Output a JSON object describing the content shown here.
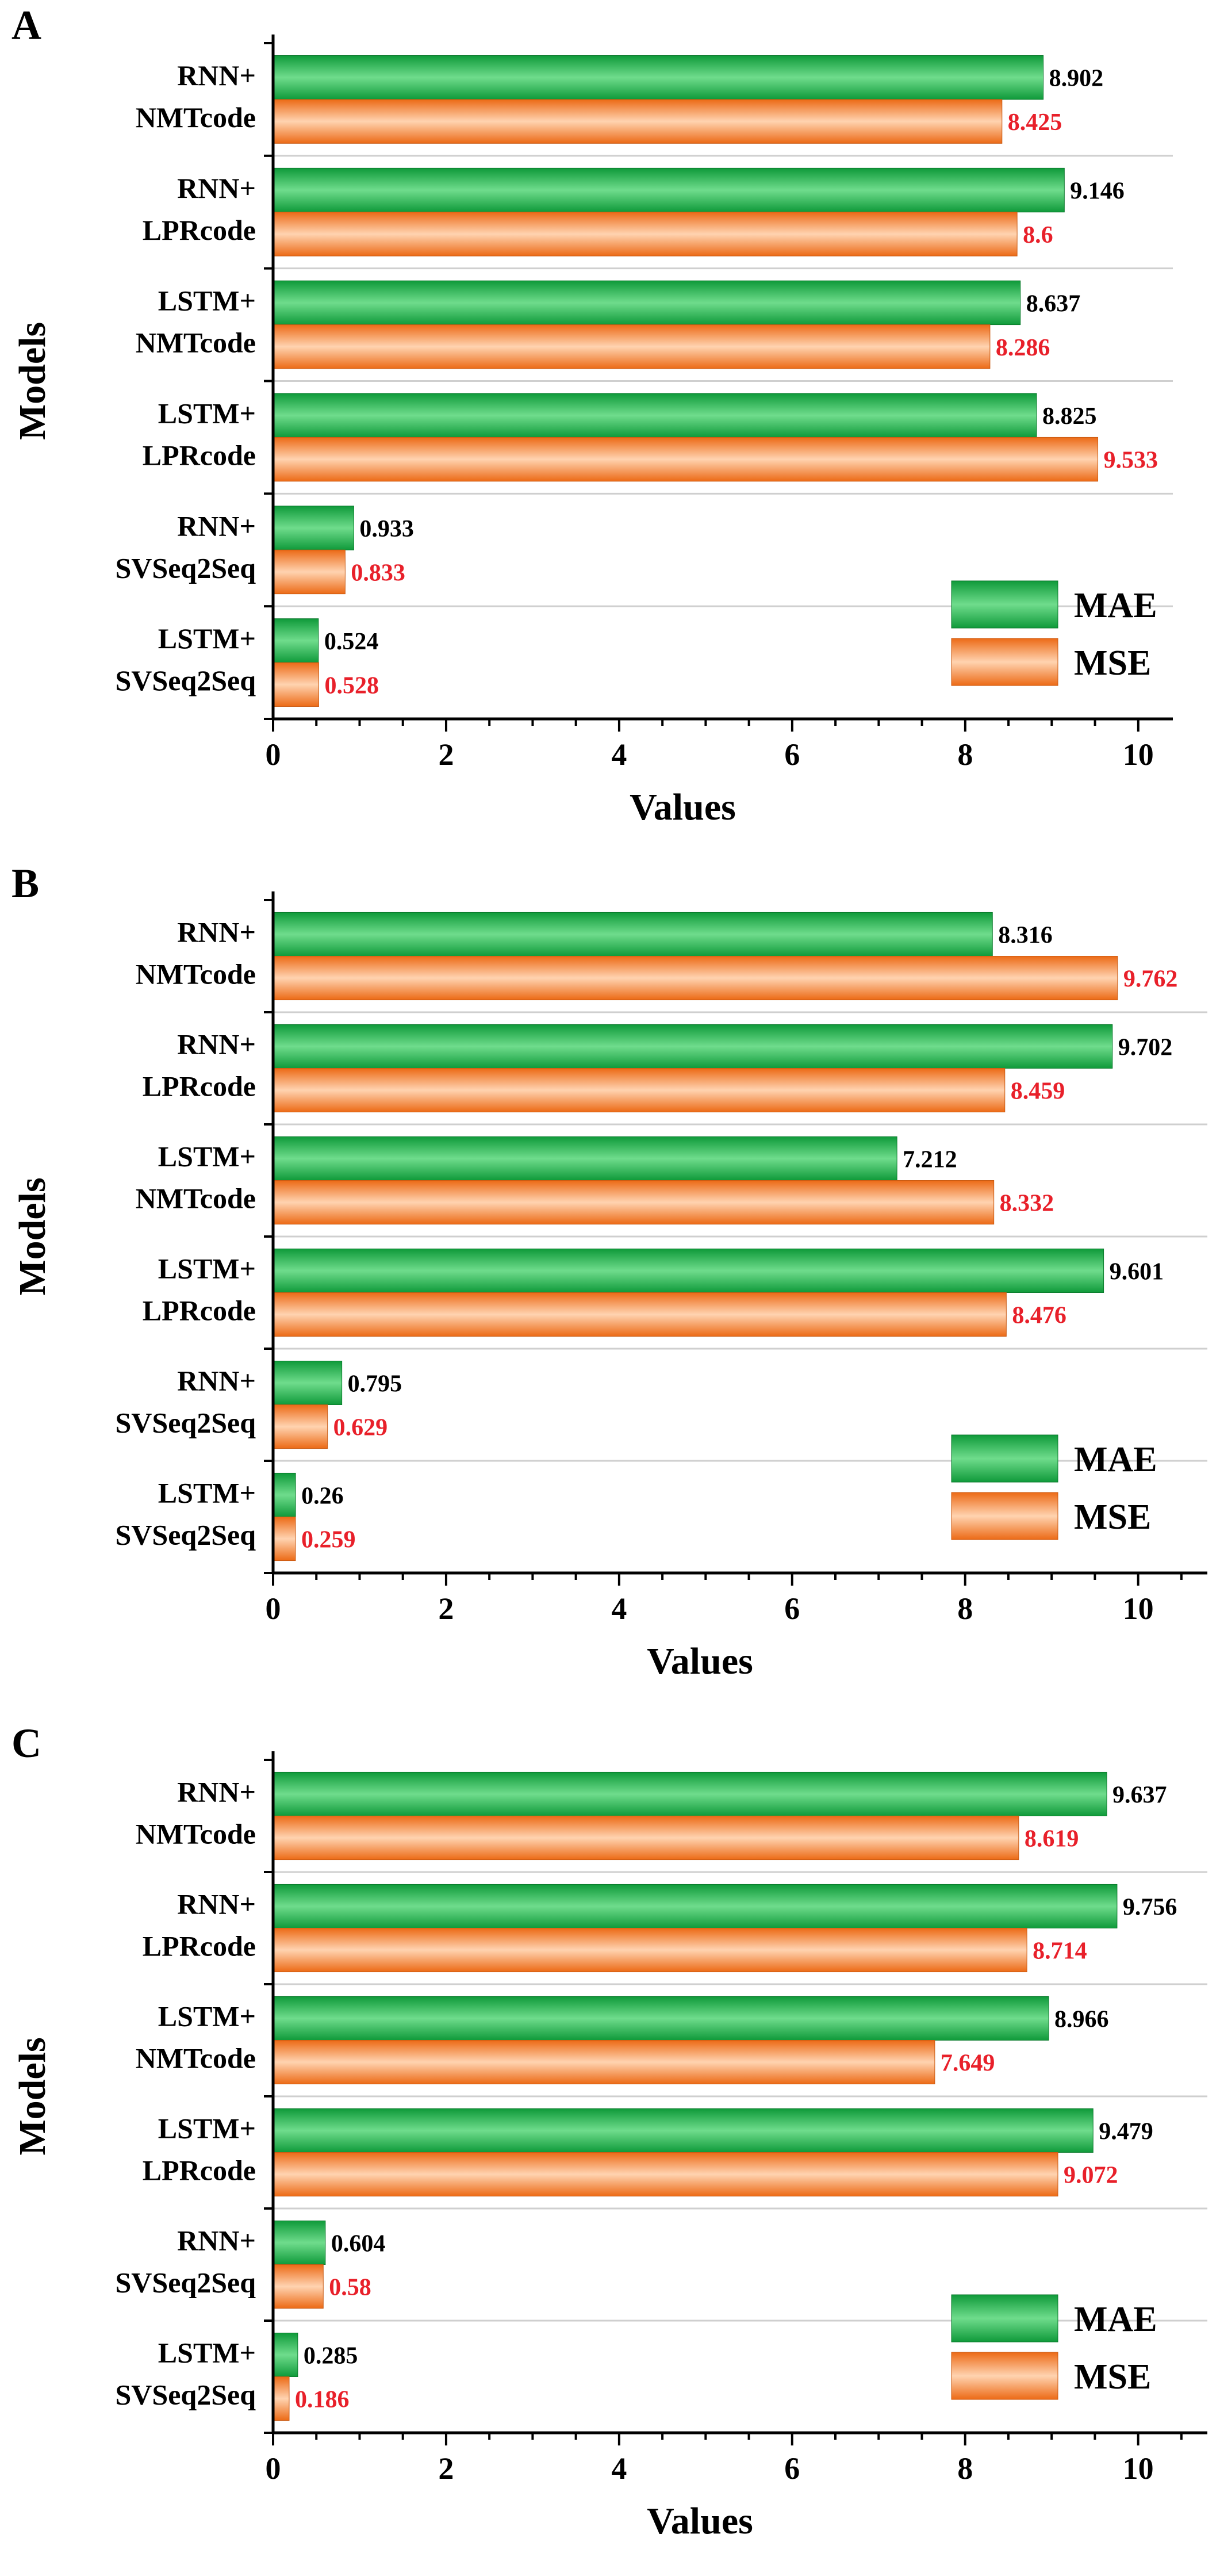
{
  "figure": {
    "legend_labels": {
      "mae": "MAE",
      "mse": "MSE"
    },
    "colors": {
      "mae": "#1fb24a",
      "mse": "#f07a2a",
      "mse_label": "#e8202a",
      "mae_label": "#000000"
    }
  },
  "chart_data": [
    {
      "type": "bar",
      "orientation": "horizontal",
      "panel_label": "A",
      "xlabel": "Values",
      "ylabel": "Models",
      "xlim": [
        0,
        10.4
      ],
      "x_ticks": [
        "0",
        "2",
        "4",
        "6",
        "8",
        "10"
      ],
      "categories": [
        [
          "RNN+",
          "NMTcode"
        ],
        [
          "RNN+",
          "LPRcode"
        ],
        [
          "LSTM+",
          "NMTcode"
        ],
        [
          "LSTM+",
          "LPRcode"
        ],
        [
          "RNN+",
          "SVSeq2Seq"
        ],
        [
          "LSTM+",
          "SVSeq2Seq"
        ]
      ],
      "series": [
        {
          "name": "MAE",
          "values": [
            8.902,
            9.146,
            8.637,
            8.825,
            0.933,
            0.524
          ],
          "labels": [
            "8.902",
            "9.146",
            "8.637",
            "8.825",
            "0.933",
            "0.524"
          ]
        },
        {
          "name": "MSE",
          "values": [
            8.425,
            8.6,
            8.286,
            9.533,
            0.833,
            0.528
          ],
          "labels": [
            "8.425",
            "8.6",
            "8.286",
            "9.533",
            "0.833",
            "0.528"
          ]
        }
      ],
      "legend_position": "bottom-right"
    },
    {
      "type": "bar",
      "orientation": "horizontal",
      "panel_label": "B",
      "xlabel": "Values",
      "ylabel": "Models",
      "xlim": [
        0,
        10.8
      ],
      "x_ticks": [
        "0",
        "2",
        "4",
        "6",
        "8",
        "10"
      ],
      "categories": [
        [
          "RNN+",
          "NMTcode"
        ],
        [
          "RNN+",
          "LPRcode"
        ],
        [
          "LSTM+",
          "NMTcode"
        ],
        [
          "LSTM+",
          "LPRcode"
        ],
        [
          "RNN+",
          "SVSeq2Seq"
        ],
        [
          "LSTM+",
          "SVSeq2Seq"
        ]
      ],
      "series": [
        {
          "name": "MAE",
          "values": [
            8.316,
            9.702,
            7.212,
            9.601,
            0.795,
            0.26
          ],
          "labels": [
            "8.316",
            "9.702",
            "7.212",
            "9.601",
            "0.795",
            "0.26"
          ]
        },
        {
          "name": "MSE",
          "values": [
            9.762,
            8.459,
            8.332,
            8.476,
            0.629,
            0.259
          ],
          "labels": [
            "9.762",
            "8.459",
            "8.332",
            "8.476",
            "0.629",
            "0.259"
          ]
        }
      ],
      "legend_position": "bottom-right"
    },
    {
      "type": "bar",
      "orientation": "horizontal",
      "panel_label": "C",
      "xlabel": "Values",
      "ylabel": "Models",
      "xlim": [
        0,
        10.8
      ],
      "x_ticks": [
        "0",
        "2",
        "4",
        "6",
        "8",
        "10"
      ],
      "categories": [
        [
          "RNN+",
          "NMTcode"
        ],
        [
          "RNN+",
          "LPRcode"
        ],
        [
          "LSTM+",
          "NMTcode"
        ],
        [
          "LSTM+",
          "LPRcode"
        ],
        [
          "RNN+",
          "SVSeq2Seq"
        ],
        [
          "LSTM+",
          "SVSeq2Seq"
        ]
      ],
      "series": [
        {
          "name": "MAE",
          "values": [
            9.637,
            9.756,
            8.966,
            9.479,
            0.604,
            0.285
          ],
          "labels": [
            "9.637",
            "9.756",
            "8.966",
            "9.479",
            "0.604",
            "0.285"
          ]
        },
        {
          "name": "MSE",
          "values": [
            8.619,
            8.714,
            7.649,
            9.072,
            0.58,
            0.186
          ],
          "labels": [
            "8.619",
            "8.714",
            "7.649",
            "9.072",
            "0.58",
            "0.186"
          ]
        }
      ],
      "legend_position": "bottom-right"
    }
  ]
}
